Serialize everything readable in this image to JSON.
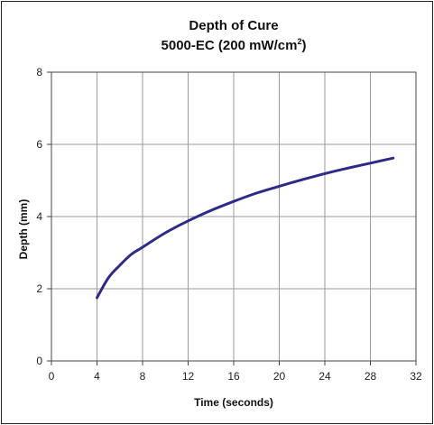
{
  "chart_data": {
    "type": "line",
    "title": "Depth of Cure",
    "subtitle_base": "5000-EC (200 mW/cm",
    "subtitle_sup": "2",
    "subtitle_end": ")",
    "xlabel": "Time (seconds)",
    "ylabel": "Depth (mm)",
    "xlim": [
      0,
      32
    ],
    "ylim": [
      0,
      8
    ],
    "x_ticks": [
      "0",
      "4",
      "8",
      "12",
      "16",
      "20",
      "24",
      "28",
      "32"
    ],
    "y_ticks": [
      "0",
      "2",
      "4",
      "6",
      "8"
    ],
    "grid": true,
    "line_color": "#2e2a8c",
    "series": [
      {
        "x": [
          4,
          5,
          6,
          7,
          8,
          10,
          12,
          14,
          16,
          18,
          20,
          22,
          24,
          26,
          28,
          30
        ],
        "y": [
          1.75,
          2.3,
          2.65,
          2.95,
          3.15,
          3.55,
          3.88,
          4.17,
          4.42,
          4.65,
          4.84,
          5.02,
          5.19,
          5.34,
          5.48,
          5.62
        ]
      }
    ]
  }
}
